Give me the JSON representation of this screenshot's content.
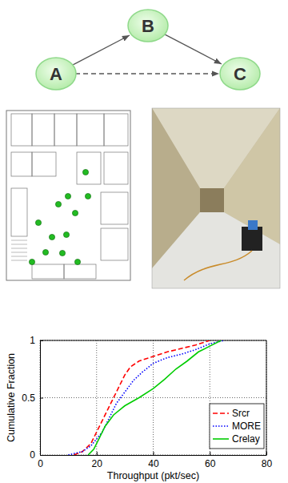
{
  "diagram": {
    "nodes": [
      {
        "label": "A"
      },
      {
        "label": "B"
      },
      {
        "label": "C"
      }
    ]
  },
  "chart_data": {
    "type": "line",
    "x_label": "Throughput (pkt/sec)",
    "y_label": "Cumulative Fraction",
    "xlim": [
      0,
      80
    ],
    "xticks": [
      0,
      20,
      40,
      60,
      80
    ],
    "ylim": [
      0,
      1
    ],
    "yticks": [
      0,
      0.5,
      1
    ],
    "grid": true,
    "legend": "lower right",
    "series": [
      {
        "name": "Srcr",
        "color": "#ff0000",
        "line_style": "dashed",
        "x": [
          12,
          15,
          18,
          20,
          22,
          24,
          26,
          28,
          30,
          32,
          35,
          40,
          45,
          50,
          55,
          60
        ],
        "values": [
          0,
          0.03,
          0.1,
          0.2,
          0.3,
          0.4,
          0.5,
          0.6,
          0.7,
          0.77,
          0.82,
          0.86,
          0.9,
          0.93,
          0.96,
          1
        ]
      },
      {
        "name": "MORE",
        "color": "#0000ff",
        "line_style": "dotted",
        "x": [
          10,
          15,
          18,
          22,
          25,
          27,
          30,
          33,
          36,
          40,
          45,
          50,
          55,
          60,
          65
        ],
        "values": [
          0,
          0.03,
          0.08,
          0.2,
          0.35,
          0.45,
          0.55,
          0.65,
          0.72,
          0.8,
          0.85,
          0.88,
          0.92,
          0.97,
          1
        ]
      },
      {
        "name": "Crelay",
        "color": "#00cc00",
        "line_style": "solid",
        "x": [
          17,
          19,
          21,
          23,
          26,
          30,
          35,
          40,
          44,
          48,
          52,
          56,
          60,
          64
        ],
        "values": [
          0,
          0.05,
          0.15,
          0.25,
          0.35,
          0.43,
          0.5,
          0.58,
          0.66,
          0.75,
          0.82,
          0.9,
          0.95,
          1
        ]
      }
    ]
  }
}
